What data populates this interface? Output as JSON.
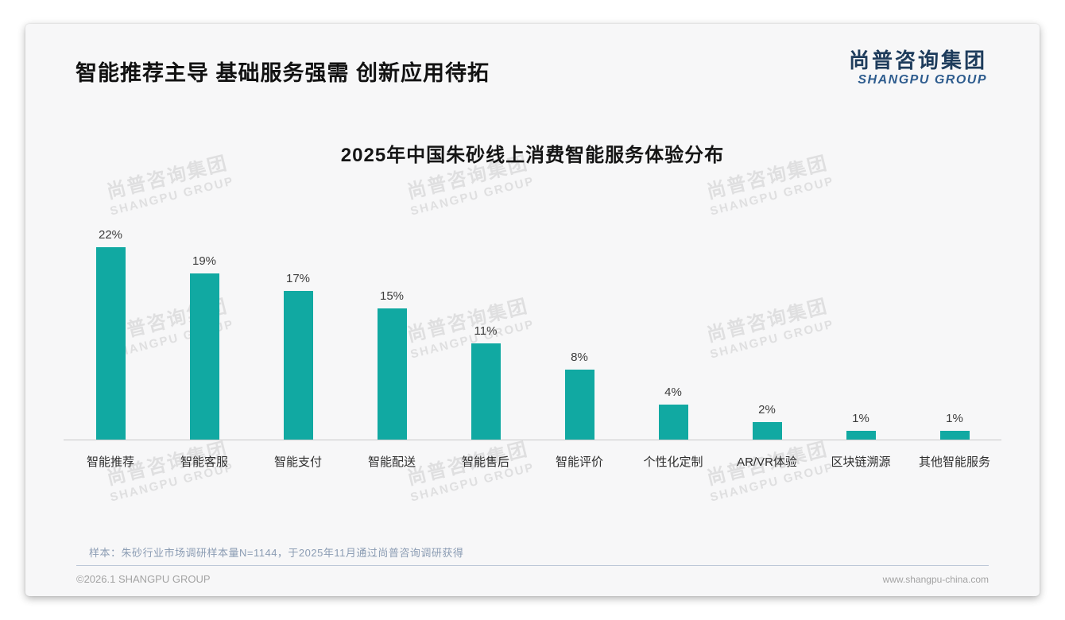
{
  "page": {
    "title": "智能推荐主导 基础服务强需 创新应用待拓",
    "logo": {
      "cn": "尚普咨询集团",
      "en": "SHANGPU GROUP"
    },
    "watermark": {
      "cn": "尚普咨询集团",
      "en": "SHANGPU GROUP"
    },
    "note": "样本：朱砂行业市场调研样本量N=1144，于2025年11月通过尚普咨询调研获得",
    "footer": {
      "left": "©2026.1 SHANGPU GROUP",
      "right": "www.shangpu-china.com"
    }
  },
  "colors": {
    "bar": "#11a9a2",
    "logo_cn": "#1e3c5c",
    "logo_en": "#2e5c8e",
    "note_text": "#8b9cb3",
    "footer_text": "#a3a3a3",
    "axis": "#c9c9c9",
    "card_bg": "#f7f7f8"
  },
  "chart_data": {
    "type": "bar",
    "title": "2025年中国朱砂线上消费智能服务体验分布",
    "categories": [
      "智能推荐",
      "智能客服",
      "智能支付",
      "智能配送",
      "智能售后",
      "智能评价",
      "个性化定制",
      "AR/VR体验",
      "区块链溯源",
      "其他智能服务"
    ],
    "values": [
      22,
      19,
      17,
      15,
      11,
      8,
      4,
      2,
      1,
      1
    ],
    "unit": "%",
    "bar_color": "#11a9a2",
    "xlabel": "",
    "ylabel": "",
    "ylim": [
      0,
      24
    ],
    "grid": false,
    "legend": false,
    "value_labels_shown": true
  }
}
